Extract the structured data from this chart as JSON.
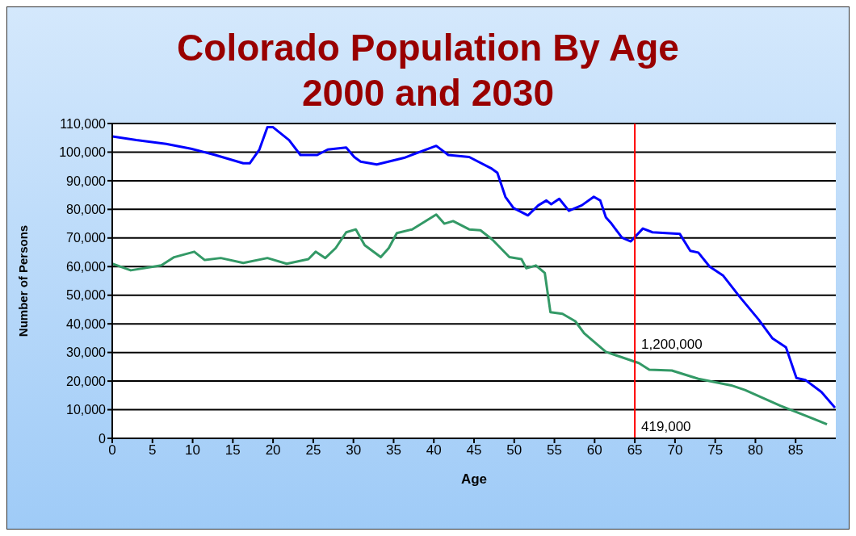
{
  "chart_data": {
    "type": "line",
    "title": "Colorado Population By Age\n2000 and 2030",
    "xlabel": "Age",
    "ylabel": "Number of Persons",
    "xlim": [
      0,
      90
    ],
    "xticks": [
      0,
      5,
      10,
      15,
      20,
      25,
      30,
      35,
      40,
      45,
      50,
      55,
      60,
      65,
      70,
      75,
      80,
      85
    ],
    "ylim": [
      0,
      110000
    ],
    "yticks": [
      {
        "value": 0,
        "label": "0"
      },
      {
        "value": 10000,
        "label": "10,000"
      },
      {
        "value": 20000,
        "label": "20,000"
      },
      {
        "value": 30000,
        "label": "30,000"
      },
      {
        "value": 40000,
        "label": "40,000"
      },
      {
        "value": 50000,
        "label": "50,000"
      },
      {
        "value": 60000,
        "label": "60,000"
      },
      {
        "value": 70000,
        "label": "70,000"
      },
      {
        "value": 80000,
        "label": "80,000"
      },
      {
        "value": 90000,
        "label": "90,000"
      },
      {
        "value": 100000,
        "label": "100,000"
      },
      {
        "value": 110000,
        "label": "110,000"
      }
    ],
    "grid": "y",
    "marker": "none",
    "line_style": "solid",
    "series": [
      {
        "color": "#0000ff",
        "x": [
          0,
          3,
          6.7,
          9.8,
          12.8,
          16.3,
          17.1,
          18.3,
          19.3,
          20,
          22,
          23.4,
          25.5,
          26.8,
          29.1,
          30.1,
          30.9,
          32.9,
          36.3,
          40.3,
          41.8,
          44.4,
          47.1,
          47.9,
          48.9,
          49.9,
          51.7,
          53,
          54,
          54.6,
          55.6,
          56.8,
          58.4,
          59.9,
          60.7,
          61.4,
          62.1,
          63.4,
          64.5,
          66,
          67.2,
          70.6,
          71.9,
          72.9,
          74.3,
          76,
          78,
          80.4,
          82.1,
          83.8,
          85.1,
          86.2,
          88.2,
          89.9
        ],
        "values": [
          105500,
          104200,
          102900,
          101200,
          99000,
          96100,
          96100,
          100900,
          108700,
          108700,
          104200,
          99000,
          99000,
          100900,
          101600,
          98300,
          96700,
          95700,
          98000,
          102200,
          99000,
          98300,
          94400,
          92800,
          84400,
          80500,
          77900,
          81400,
          83100,
          81800,
          83700,
          79500,
          81400,
          84400,
          83100,
          77200,
          75000,
          70100,
          68800,
          73300,
          72000,
          71400,
          65500,
          64900,
          60000,
          56800,
          49600,
          41500,
          35000,
          31800,
          21100,
          20400,
          16200,
          10700
        ]
      },
      {
        "color": "#339966",
        "x": [
          0,
          2.3,
          6.1,
          7.7,
          10.2,
          11.5,
          13.5,
          16.3,
          19.3,
          21.7,
          24.4,
          25.3,
          26.5,
          27.8,
          29.1,
          30.3,
          31.4,
          33.4,
          34.4,
          35.4,
          37.3,
          40.3,
          41.3,
          42.4,
          44.4,
          45.8,
          47.3,
          49.4,
          50.9,
          51.5,
          52.7,
          53.8,
          54.5,
          56,
          57.6,
          58.7,
          59.4,
          61.4,
          65.5,
          66.8,
          69.6,
          72.9,
          77,
          78.7,
          83.1,
          86.6,
          88.9
        ],
        "values": [
          61000,
          58700,
          60400,
          63300,
          65200,
          62300,
          63000,
          61300,
          63000,
          61000,
          62600,
          65200,
          63000,
          66500,
          72000,
          73000,
          67500,
          63300,
          66500,
          71700,
          73000,
          78200,
          75000,
          75900,
          73000,
          72700,
          69400,
          63300,
          62600,
          59400,
          60400,
          57800,
          44100,
          43500,
          40900,
          36700,
          35000,
          30200,
          26300,
          24000,
          23700,
          20800,
          18500,
          16900,
          11400,
          7500,
          4900
        ]
      }
    ],
    "ref_lines": [
      {
        "axis": "x",
        "value": 65,
        "color": "#ff0000"
      }
    ],
    "annotations": [
      {
        "text": "1,200,000",
        "x": 65,
        "y": 33000
      },
      {
        "text": "419,000",
        "x": 65,
        "y": 4200
      }
    ]
  }
}
